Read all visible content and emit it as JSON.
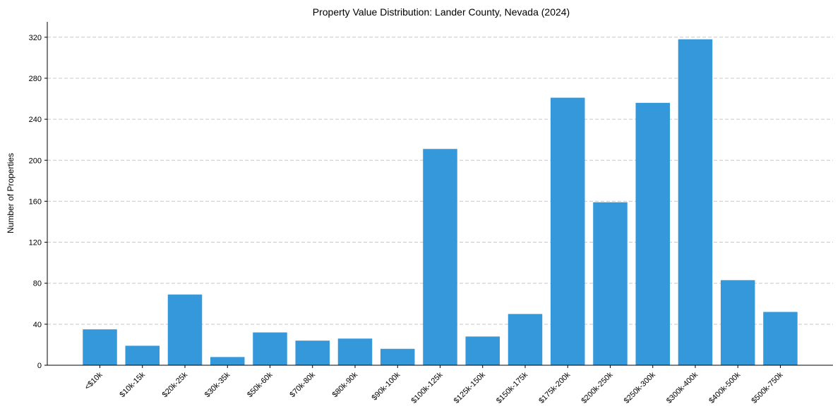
{
  "chart_data": {
    "type": "bar",
    "title": "Property Value Distribution: Lander County, Nevada (2024)",
    "xlabel": "",
    "ylabel": "Number of Properties",
    "categories": [
      "<$10k",
      "$10k-15k",
      "$20k-25k",
      "$30k-35k",
      "$50k-60k",
      "$70k-80k",
      "$80k-90k",
      "$90k-100k",
      "$100k-125k",
      "$125k-150k",
      "$150k-175k",
      "$175k-200k",
      "$200k-250k",
      "$250k-300k",
      "$300k-400k",
      "$400k-500k",
      "$500k-750k"
    ],
    "values": [
      35,
      19,
      69,
      8,
      32,
      24,
      26,
      16,
      211,
      28,
      50,
      261,
      159,
      256,
      318,
      83,
      52
    ],
    "ylim": [
      0,
      335
    ],
    "yticks": [
      0,
      40,
      80,
      120,
      160,
      200,
      240,
      280,
      320
    ],
    "grid": "y-dashed",
    "bar_color": "#3498db"
  }
}
